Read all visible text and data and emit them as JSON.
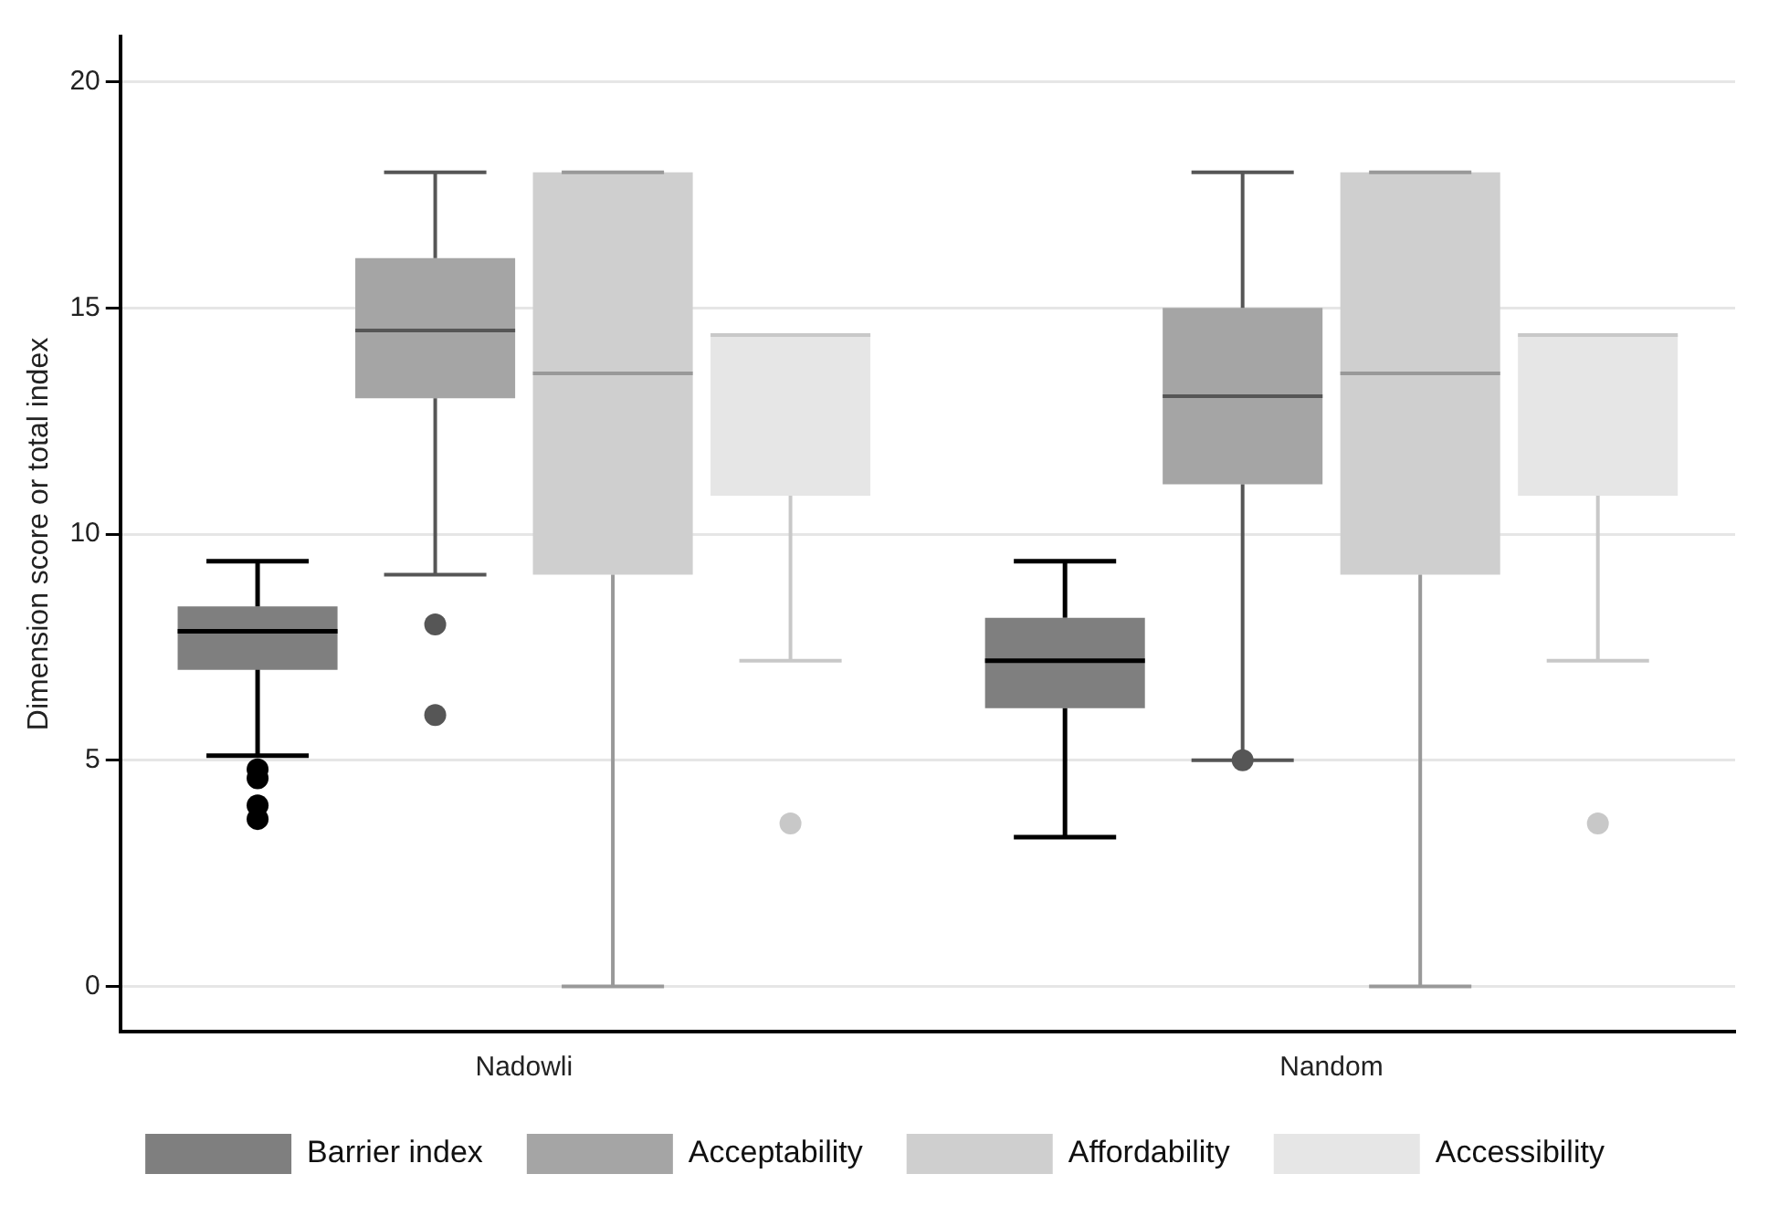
{
  "chart_data": {
    "type": "box",
    "ylabel": "Dimension score or total index",
    "categories": [
      "Nadowli",
      "Nandom"
    ],
    "ylim": [
      -1,
      21
    ],
    "yticks": [
      0,
      5,
      10,
      15,
      20
    ],
    "grid": "y",
    "legend": "bottom",
    "series": [
      {
        "name": "Barrier index",
        "color": "#7f7f7f",
        "boxes": [
          {
            "low": 5.1,
            "q1": 7.0,
            "median": 7.85,
            "q3": 8.4,
            "high": 9.4,
            "outliers": [
              4.8,
              4.6,
              4.0,
              3.7
            ]
          },
          {
            "low": 3.3,
            "q1": 6.15,
            "median": 7.2,
            "q3": 8.15,
            "high": 9.4
          }
        ]
      },
      {
        "name": "Acceptability",
        "color": "#a5a5a5",
        "boxes": [
          {
            "low": 9.1,
            "q1": 13.0,
            "median": 14.5,
            "q3": 16.1,
            "high": 18.0,
            "outliers": [
              8.0,
              6.0
            ]
          },
          {
            "low": 5.0,
            "q1": 11.1,
            "median": 13.05,
            "q3": 15.0,
            "high": 18.0,
            "outliers": [
              5.0
            ]
          }
        ]
      },
      {
        "name": "Affordability",
        "color": "#cfcfcf",
        "boxes": [
          {
            "low": 0,
            "q1": 9.1,
            "median": 13.55,
            "q3": 18.0,
            "high": 18.0
          },
          {
            "low": 0,
            "q1": 9.1,
            "median": 13.55,
            "q3": 18.0,
            "high": 18.0
          }
        ]
      },
      {
        "name": "Accessibility",
        "color": "#e6e6e6",
        "boxes": [
          {
            "low": 7.2,
            "q1": 10.85,
            "median": 14.4,
            "q3": 14.4,
            "high": 14.4,
            "outliers": [
              3.6
            ]
          },
          {
            "low": 7.2,
            "q1": 10.85,
            "median": 14.4,
            "q3": 14.4,
            "high": 14.4,
            "outliers": [
              3.6
            ]
          }
        ]
      }
    ]
  }
}
